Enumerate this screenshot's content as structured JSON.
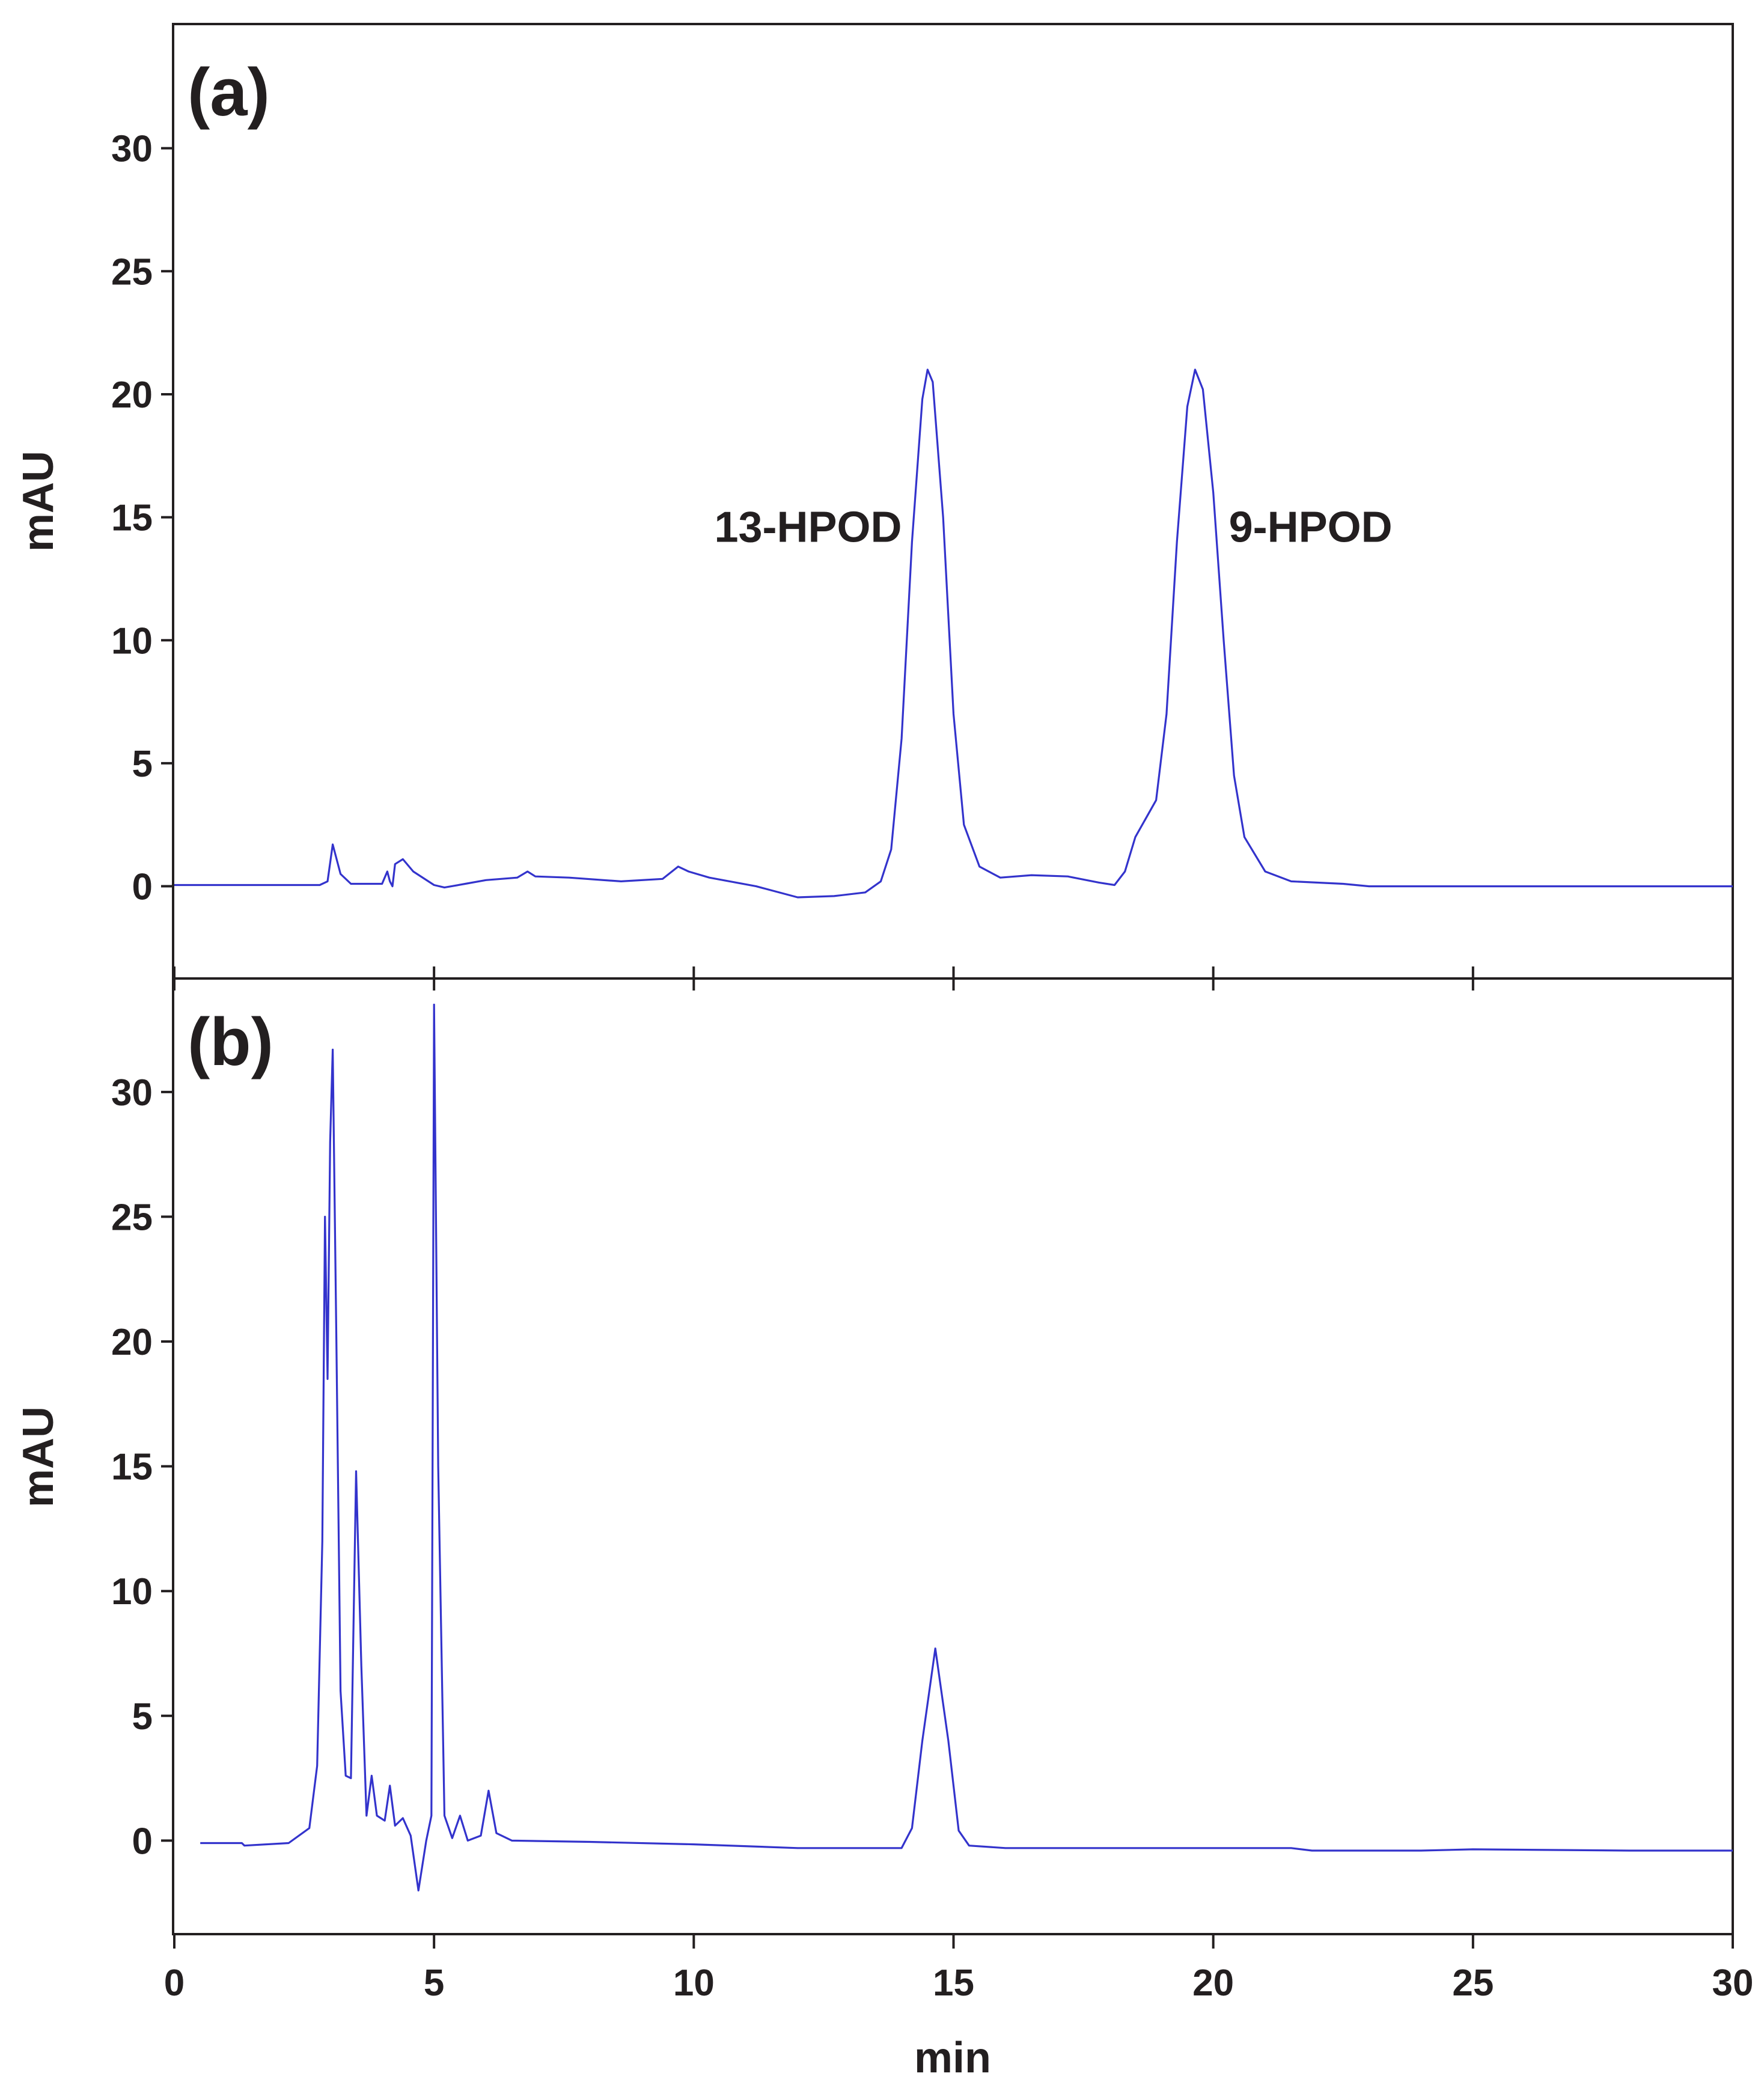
{
  "chart_data": [
    {
      "type": "line",
      "panel_label": "(a)",
      "xlabel": "",
      "ylabel": "mAU",
      "xlim": [
        0,
        30
      ],
      "ylim": [
        -3.7,
        35
      ],
      "x_ticks": [
        "0",
        "5",
        "10",
        "15",
        "20",
        "25",
        "30"
      ],
      "y_ticks": [
        "0",
        "5",
        "10",
        "15",
        "20",
        "25",
        "30"
      ],
      "y_tick_values": [
        0,
        5,
        10,
        15,
        20,
        25,
        30
      ],
      "grid": false,
      "line_color": "#3333cc",
      "annotations": [
        {
          "text": "13-HPOD",
          "x": 12.2,
          "y": 14.0
        },
        {
          "text": "9-HPOD",
          "x": 20.3,
          "y": 14.0
        }
      ],
      "series": [
        {
          "points": [
            [
              0,
              0.05
            ],
            [
              2.8,
              0.05
            ],
            [
              2.95,
              0.2
            ],
            [
              3.05,
              1.7
            ],
            [
              3.2,
              0.5
            ],
            [
              3.4,
              0.1
            ],
            [
              4.0,
              0.1
            ],
            [
              4.1,
              0.6
            ],
            [
              4.15,
              0.2
            ],
            [
              4.2,
              0.0
            ],
            [
              4.25,
              0.9
            ],
            [
              4.4,
              1.1
            ],
            [
              4.6,
              0.6
            ],
            [
              5.0,
              0.05
            ],
            [
              5.2,
              -0.05
            ],
            [
              5.6,
              0.1
            ],
            [
              6.0,
              0.25
            ],
            [
              6.6,
              0.35
            ],
            [
              6.8,
              0.6
            ],
            [
              6.95,
              0.4
            ],
            [
              7.6,
              0.35
            ],
            [
              8.6,
              0.2
            ],
            [
              9.4,
              0.3
            ],
            [
              9.7,
              0.8
            ],
            [
              9.9,
              0.6
            ],
            [
              10.3,
              0.35
            ],
            [
              11.2,
              0.0
            ],
            [
              12.0,
              -0.45
            ],
            [
              12.7,
              -0.4
            ],
            [
              13.3,
              -0.25
            ],
            [
              13.6,
              0.2
            ],
            [
              13.8,
              1.5
            ],
            [
              14.0,
              6.0
            ],
            [
              14.2,
              14.0
            ],
            [
              14.4,
              19.8
            ],
            [
              14.5,
              21.0
            ],
            [
              14.6,
              20.5
            ],
            [
              14.8,
              15.0
            ],
            [
              15.0,
              7.0
            ],
            [
              15.2,
              2.5
            ],
            [
              15.5,
              0.8
            ],
            [
              15.9,
              0.35
            ],
            [
              16.5,
              0.45
            ],
            [
              17.2,
              0.4
            ],
            [
              17.8,
              0.15
            ],
            [
              18.1,
              0.05
            ],
            [
              18.3,
              0.6
            ],
            [
              18.5,
              2.0
            ],
            [
              18.9,
              3.5
            ],
            [
              19.1,
              7.0
            ],
            [
              19.3,
              14.0
            ],
            [
              19.5,
              19.5
            ],
            [
              19.65,
              21.0
            ],
            [
              19.8,
              20.2
            ],
            [
              20.0,
              16.0
            ],
            [
              20.2,
              10.0
            ],
            [
              20.4,
              4.5
            ],
            [
              20.6,
              2.0
            ],
            [
              21.0,
              0.6
            ],
            [
              21.5,
              0.2
            ],
            [
              22.5,
              0.1
            ],
            [
              23.0,
              0.0
            ],
            [
              30,
              0.0
            ]
          ]
        }
      ]
    },
    {
      "type": "line",
      "panel_label": "(b)",
      "xlabel": "min",
      "ylabel": "mAU",
      "xlim": [
        0,
        30
      ],
      "ylim": [
        -3.7,
        34.5
      ],
      "x_ticks": [
        "0",
        "5",
        "10",
        "15",
        "20",
        "25",
        "30"
      ],
      "y_ticks": [
        "0",
        "5",
        "10",
        "15",
        "20",
        "25",
        "30"
      ],
      "y_tick_values": [
        0,
        5,
        10,
        15,
        20,
        25,
        30
      ],
      "grid": false,
      "line_color": "#3333cc",
      "series": [
        {
          "points": [
            [
              0.5,
              -0.1
            ],
            [
              1.3,
              -0.1
            ],
            [
              1.35,
              -0.2
            ],
            [
              2.2,
              -0.1
            ],
            [
              2.6,
              0.5
            ],
            [
              2.75,
              3.0
            ],
            [
              2.85,
              12.0
            ],
            [
              2.9,
              25.0
            ],
            [
              2.95,
              18.5
            ],
            [
              3.0,
              28.0
            ],
            [
              3.05,
              31.7
            ],
            [
              3.12,
              20.0
            ],
            [
              3.2,
              6.0
            ],
            [
              3.3,
              2.6
            ],
            [
              3.4,
              2.5
            ],
            [
              3.5,
              14.8
            ],
            [
              3.6,
              7.0
            ],
            [
              3.7,
              1.0
            ],
            [
              3.8,
              2.6
            ],
            [
              3.9,
              1.0
            ],
            [
              4.05,
              0.8
            ],
            [
              4.15,
              2.2
            ],
            [
              4.25,
              0.6
            ],
            [
              4.4,
              0.9
            ],
            [
              4.55,
              0.2
            ],
            [
              4.7,
              -2.0
            ],
            [
              4.85,
              0.0
            ],
            [
              4.95,
              1.0
            ],
            [
              5.0,
              33.5
            ],
            [
              5.08,
              15.0
            ],
            [
              5.2,
              1.0
            ],
            [
              5.35,
              0.1
            ],
            [
              5.5,
              1.0
            ],
            [
              5.65,
              0.0
            ],
            [
              5.9,
              0.2
            ],
            [
              6.05,
              2.0
            ],
            [
              6.2,
              0.3
            ],
            [
              6.5,
              0.0
            ],
            [
              8.0,
              -0.05
            ],
            [
              10.0,
              -0.15
            ],
            [
              12.0,
              -0.3
            ],
            [
              14.0,
              -0.3
            ],
            [
              14.2,
              0.5
            ],
            [
              14.4,
              4.0
            ],
            [
              14.65,
              7.7
            ],
            [
              14.9,
              4.0
            ],
            [
              15.1,
              0.4
            ],
            [
              15.3,
              -0.2
            ],
            [
              16.0,
              -0.3
            ],
            [
              21.5,
              -0.3
            ],
            [
              21.9,
              -0.4
            ],
            [
              24.0,
              -0.4
            ],
            [
              25.0,
              -0.35
            ],
            [
              28.0,
              -0.4
            ],
            [
              30,
              -0.4
            ]
          ]
        }
      ]
    }
  ]
}
